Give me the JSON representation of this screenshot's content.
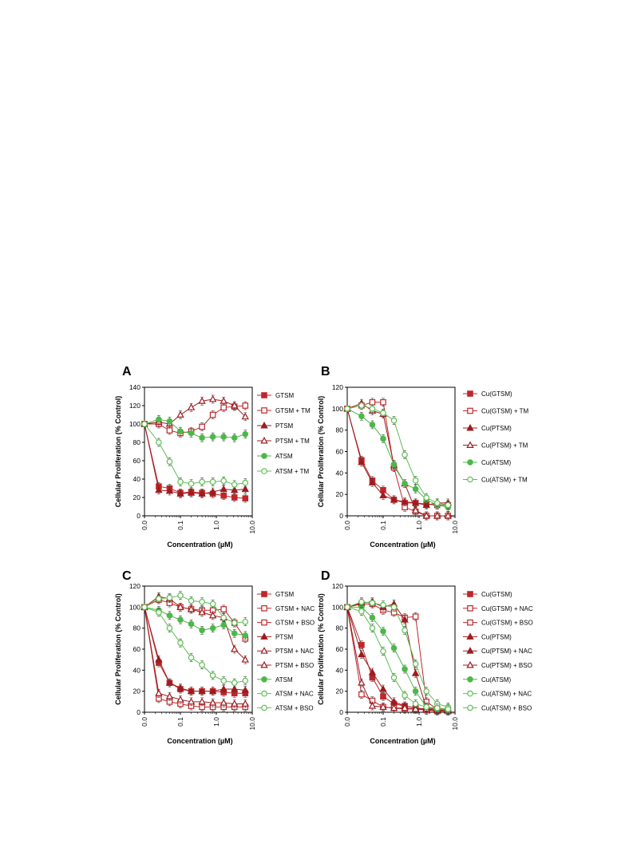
{
  "chart_data": [
    {
      "panel": "A",
      "type": "line",
      "x": [
        0.0,
        0.025,
        0.05,
        0.1,
        0.2,
        0.4,
        0.8,
        1.6,
        3.2,
        6.4
      ],
      "xlabel": "Concentration  (µM)",
      "ylabel": "Cellular Proliferation (% Control)",
      "ylim": [
        0,
        140
      ],
      "yticks": [
        0,
        20,
        40,
        60,
        80,
        100,
        120,
        140
      ],
      "xtick_labels": [
        "0.0",
        "0.1",
        "1.0",
        "10.0"
      ],
      "series": [
        {
          "name": "GTSM",
          "color": "#c0262a",
          "marker": "square",
          "filled": true,
          "values": [
            100,
            32,
            30,
            25,
            26,
            25,
            24,
            22,
            20,
            19
          ]
        },
        {
          "name": "GTSM + TM",
          "color": "#c0262a",
          "marker": "square",
          "filled": false,
          "values": [
            100,
            100,
            93,
            90,
            92,
            97,
            110,
            118,
            119,
            120
          ]
        },
        {
          "name": "PTSM",
          "color": "#9e1b1e",
          "marker": "triangle",
          "filled": true,
          "values": [
            100,
            28,
            27,
            24,
            25,
            24,
            26,
            29,
            28,
            29
          ]
        },
        {
          "name": "PTSM + TM",
          "color": "#9e1b1e",
          "marker": "triangle",
          "filled": false,
          "values": [
            100,
            102,
            100,
            110,
            118,
            125,
            127,
            125,
            120,
            108
          ]
        },
        {
          "name": "ATSM",
          "color": "#4bb848",
          "marker": "circle",
          "filled": true,
          "values": [
            100,
            105,
            103,
            92,
            90,
            85,
            86,
            86,
            85,
            89
          ]
        },
        {
          "name": "ATSM + TM",
          "color": "#5cbf52",
          "marker": "circle",
          "filled": false,
          "values": [
            100,
            80,
            59,
            37,
            35,
            37,
            37,
            38,
            34,
            36
          ]
        }
      ]
    },
    {
      "panel": "B",
      "type": "line",
      "x": [
        0.0,
        0.025,
        0.05,
        0.1,
        0.2,
        0.4,
        0.8,
        1.6,
        3.2,
        6.4
      ],
      "xlabel": "Concentration  (µM)",
      "ylabel": "Cellular Proliferation (% Control)",
      "ylim": [
        0,
        120
      ],
      "yticks": [
        0,
        20,
        40,
        60,
        80,
        100,
        120
      ],
      "xtick_labels": [
        "0.0",
        "0.1",
        "1.0",
        "10.0"
      ],
      "series": [
        {
          "name": "Cu(GTSM)",
          "color": "#c0262a",
          "marker": "square",
          "filled": true,
          "values": [
            100,
            52,
            33,
            24,
            15,
            12,
            12,
            11,
            10,
            10
          ]
        },
        {
          "name": "Cu(GTSM) + TM",
          "color": "#c0262a",
          "marker": "square",
          "filled": false,
          "values": [
            100,
            103,
            106,
            106,
            45,
            8,
            4,
            0,
            0,
            0
          ]
        },
        {
          "name": "Cu(PTSM)",
          "color": "#9e1b1e",
          "marker": "triangle",
          "filled": true,
          "values": [
            100,
            50,
            31,
            19,
            15,
            13,
            12,
            10,
            12,
            12
          ]
        },
        {
          "name": "Cu(PTSM) + TM",
          "color": "#9e1b1e",
          "marker": "triangle",
          "filled": false,
          "values": [
            100,
            105,
            98,
            95,
            47,
            30,
            5,
            0,
            0,
            0
          ]
        },
        {
          "name": "Cu(ATSM)",
          "color": "#4bb848",
          "marker": "circle",
          "filled": true,
          "values": [
            100,
            93,
            85,
            72,
            48,
            30,
            25,
            15,
            10,
            8
          ]
        },
        {
          "name": "Cu(ATSM) + TM",
          "color": "#5cbf52",
          "marker": "circle",
          "filled": false,
          "values": [
            100,
            103,
            100,
            96,
            89,
            57,
            33,
            17,
            12,
            10
          ]
        }
      ]
    },
    {
      "panel": "C",
      "type": "line",
      "x": [
        0.0,
        0.025,
        0.05,
        0.1,
        0.2,
        0.4,
        0.8,
        1.6,
        3.2,
        6.4
      ],
      "xlabel": "Concentration  (µM)",
      "ylabel": "Cellular Proliferation (% Control)",
      "ylim": [
        0,
        120
      ],
      "yticks": [
        0,
        20,
        40,
        60,
        80,
        100,
        120
      ],
      "xtick_labels": [
        "0.0",
        "0.1",
        "1.0",
        "10.0"
      ],
      "series": [
        {
          "name": "GTSM",
          "color": "#c0262a",
          "marker": "square",
          "filled": true,
          "values": [
            100,
            47,
            28,
            22,
            20,
            20,
            20,
            19,
            18,
            18
          ]
        },
        {
          "name": "GTSM + NAC",
          "color": "#c0262a",
          "marker": "square",
          "filled": false,
          "values": [
            100,
            107,
            104,
            100,
            98,
            97,
            97,
            98,
            85,
            70
          ]
        },
        {
          "name": "GTSM + BSO",
          "color": "#c0262a",
          "marker": "square",
          "filled": false,
          "values": [
            100,
            13,
            10,
            8,
            6,
            5,
            5,
            5,
            5,
            5
          ]
        },
        {
          "name": "PTSM",
          "color": "#9e1b1e",
          "marker": "triangle",
          "filled": true,
          "values": [
            100,
            50,
            28,
            23,
            20,
            20,
            20,
            22,
            22,
            21
          ]
        },
        {
          "name": "PTSM + NAC",
          "color": "#9e1b1e",
          "marker": "triangle",
          "filled": false,
          "values": [
            100,
            110,
            108,
            100,
            98,
            95,
            92,
            90,
            60,
            50
          ]
        },
        {
          "name": "PTSM + BSO",
          "color": "#9e1b1e",
          "marker": "triangle",
          "filled": false,
          "values": [
            100,
            18,
            15,
            12,
            10,
            10,
            9,
            9,
            8,
            8
          ]
        },
        {
          "name": "ATSM",
          "color": "#4bb848",
          "marker": "circle",
          "filled": true,
          "values": [
            100,
            97,
            92,
            88,
            84,
            78,
            80,
            83,
            75,
            73
          ]
        },
        {
          "name": "ATSM + NAC",
          "color": "#5cbf52",
          "marker": "circle",
          "filled": false,
          "values": [
            100,
            108,
            109,
            111,
            106,
            105,
            103,
            90,
            85,
            86
          ]
        },
        {
          "name": "ATSM + BSO",
          "color": "#5cbf52",
          "marker": "circle",
          "filled": false,
          "values": [
            100,
            95,
            80,
            66,
            52,
            45,
            35,
            30,
            28,
            30
          ]
        }
      ]
    },
    {
      "panel": "D",
      "type": "line",
      "x": [
        0.0,
        0.025,
        0.05,
        0.1,
        0.2,
        0.4,
        0.8,
        1.6,
        3.2,
        6.4
      ],
      "xlabel": "Concentration  (µM)",
      "ylabel": "Cellular Proliferation (% Control)",
      "ylim": [
        0,
        120
      ],
      "yticks": [
        0,
        20,
        40,
        60,
        80,
        100,
        120
      ],
      "xtick_labels": [
        "0.0",
        "0.1",
        "1.0",
        "10.0"
      ],
      "series": [
        {
          "name": "Cu(GTSM)",
          "color": "#c0262a",
          "marker": "square",
          "filled": true,
          "values": [
            100,
            64,
            33,
            15,
            8,
            6,
            4,
            2,
            1,
            1
          ]
        },
        {
          "name": "Cu(GTSM) + NAC",
          "color": "#c0262a",
          "marker": "square",
          "filled": false,
          "values": [
            100,
            103,
            103,
            97,
            95,
            90,
            91,
            10,
            3,
            2
          ]
        },
        {
          "name": "Cu(GTSM) + BSO",
          "color": "#c0262a",
          "marker": "square",
          "filled": false,
          "values": [
            100,
            17,
            11,
            5,
            4,
            3,
            3,
            2,
            2,
            1
          ]
        },
        {
          "name": "Cu(PTSM)",
          "color": "#9e1b1e",
          "marker": "triangle",
          "filled": true,
          "values": [
            100,
            55,
            38,
            22,
            10,
            6,
            4,
            3,
            2,
            2
          ]
        },
        {
          "name": "Cu(PTSM) + NAC",
          "color": "#9e1b1e",
          "marker": "triangle",
          "filled": true,
          "values": [
            100,
            104,
            105,
            100,
            103,
            88,
            37,
            4,
            3,
            3
          ]
        },
        {
          "name": "Cu(PTSM) + BSO",
          "color": "#9e1b1e",
          "marker": "triangle",
          "filled": false,
          "values": [
            100,
            28,
            6,
            5,
            4,
            4,
            3,
            3,
            2,
            2
          ]
        },
        {
          "name": "Cu(ATSM)",
          "color": "#4bb848",
          "marker": "circle",
          "filled": true,
          "values": [
            100,
            100,
            90,
            77,
            61,
            41,
            20,
            5,
            3,
            2
          ]
        },
        {
          "name": "Cu(ATSM) + NAC",
          "color": "#5cbf52",
          "marker": "circle",
          "filled": false,
          "values": [
            100,
            105,
            104,
            102,
            100,
            78,
            46,
            20,
            8,
            5
          ]
        },
        {
          "name": "Cu(ATSM) + BSO",
          "color": "#5cbf52",
          "marker": "circle",
          "filled": false,
          "values": [
            100,
            96,
            80,
            58,
            33,
            16,
            8,
            5,
            4,
            3
          ]
        }
      ]
    }
  ]
}
